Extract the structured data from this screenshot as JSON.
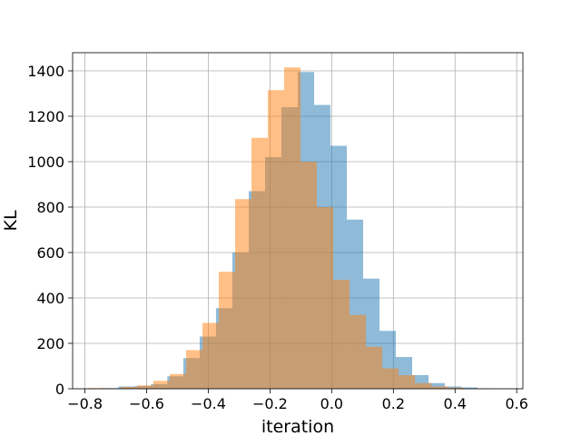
{
  "chart_data": {
    "type": "bar",
    "xlabel": "iteration",
    "ylabel": "KL",
    "xlim": [
      -0.84,
      0.62
    ],
    "ylim": [
      0,
      1480
    ],
    "xticks": [
      -0.8,
      -0.6,
      -0.4,
      -0.2,
      0.0,
      0.2,
      0.4,
      0.6
    ],
    "xtick_labels": [
      "−0.8",
      "−0.6",
      "−0.4",
      "−0.2",
      "0.0",
      "0.2",
      "0.4",
      "0.6"
    ],
    "yticks": [
      0,
      200,
      400,
      600,
      800,
      1000,
      1200,
      1400
    ],
    "ytick_labels": [
      "0",
      "200",
      "400",
      "600",
      "800",
      "1000",
      "1200",
      "1400"
    ],
    "grid": true,
    "series": [
      {
        "color": "#1f77b4",
        "alpha": 0.5,
        "bins": [
          {
            "x0": -0.745,
            "x1": -0.692,
            "count": 3
          },
          {
            "x0": -0.692,
            "x1": -0.639,
            "count": 10
          },
          {
            "x0": -0.639,
            "x1": -0.586,
            "count": 12
          },
          {
            "x0": -0.586,
            "x1": -0.533,
            "count": 20
          },
          {
            "x0": -0.533,
            "x1": -0.481,
            "count": 55
          },
          {
            "x0": -0.481,
            "x1": -0.428,
            "count": 135
          },
          {
            "x0": -0.428,
            "x1": -0.375,
            "count": 230
          },
          {
            "x0": -0.375,
            "x1": -0.322,
            "count": 355
          },
          {
            "x0": -0.322,
            "x1": -0.269,
            "count": 600
          },
          {
            "x0": -0.269,
            "x1": -0.216,
            "count": 870
          },
          {
            "x0": -0.216,
            "x1": -0.163,
            "count": 1020
          },
          {
            "x0": -0.163,
            "x1": -0.11,
            "count": 1240
          },
          {
            "x0": -0.11,
            "x1": -0.057,
            "count": 1395
          },
          {
            "x0": -0.057,
            "x1": -0.004,
            "count": 1250
          },
          {
            "x0": -0.004,
            "x1": 0.049,
            "count": 1070
          },
          {
            "x0": 0.049,
            "x1": 0.102,
            "count": 745
          },
          {
            "x0": 0.102,
            "x1": 0.155,
            "count": 485
          },
          {
            "x0": 0.155,
            "x1": 0.208,
            "count": 255
          },
          {
            "x0": 0.208,
            "x1": 0.261,
            "count": 140
          },
          {
            "x0": 0.261,
            "x1": 0.314,
            "count": 60
          },
          {
            "x0": 0.314,
            "x1": 0.367,
            "count": 25
          },
          {
            "x0": 0.367,
            "x1": 0.42,
            "count": 10
          },
          {
            "x0": 0.42,
            "x1": 0.473,
            "count": 6
          },
          {
            "x0": 0.473,
            "x1": 0.526,
            "count": 2
          }
        ]
      },
      {
        "color": "#ff7f0e",
        "alpha": 0.5,
        "bins": [
          {
            "x0": -0.79,
            "x1": -0.737,
            "count": 3
          },
          {
            "x0": -0.737,
            "x1": -0.684,
            "count": 2
          },
          {
            "x0": -0.684,
            "x1": -0.631,
            "count": 8
          },
          {
            "x0": -0.631,
            "x1": -0.578,
            "count": 15
          },
          {
            "x0": -0.578,
            "x1": -0.525,
            "count": 35
          },
          {
            "x0": -0.525,
            "x1": -0.472,
            "count": 65
          },
          {
            "x0": -0.472,
            "x1": -0.419,
            "count": 170
          },
          {
            "x0": -0.419,
            "x1": -0.366,
            "count": 290
          },
          {
            "x0": -0.366,
            "x1": -0.313,
            "count": 515
          },
          {
            "x0": -0.313,
            "x1": -0.26,
            "count": 835
          },
          {
            "x0": -0.26,
            "x1": -0.207,
            "count": 1105
          },
          {
            "x0": -0.207,
            "x1": -0.154,
            "count": 1315
          },
          {
            "x0": -0.154,
            "x1": -0.101,
            "count": 1415
          },
          {
            "x0": -0.101,
            "x1": -0.048,
            "count": 1000
          },
          {
            "x0": -0.048,
            "x1": 0.005,
            "count": 800
          },
          {
            "x0": 0.005,
            "x1": 0.058,
            "count": 480
          },
          {
            "x0": 0.058,
            "x1": 0.111,
            "count": 325
          },
          {
            "x0": 0.111,
            "x1": 0.164,
            "count": 185
          },
          {
            "x0": 0.164,
            "x1": 0.217,
            "count": 90
          },
          {
            "x0": 0.217,
            "x1": 0.27,
            "count": 60
          },
          {
            "x0": 0.27,
            "x1": 0.323,
            "count": 25
          },
          {
            "x0": 0.323,
            "x1": 0.376,
            "count": 10
          },
          {
            "x0": 0.376,
            "x1": 0.429,
            "count": 5
          }
        ]
      }
    ]
  }
}
